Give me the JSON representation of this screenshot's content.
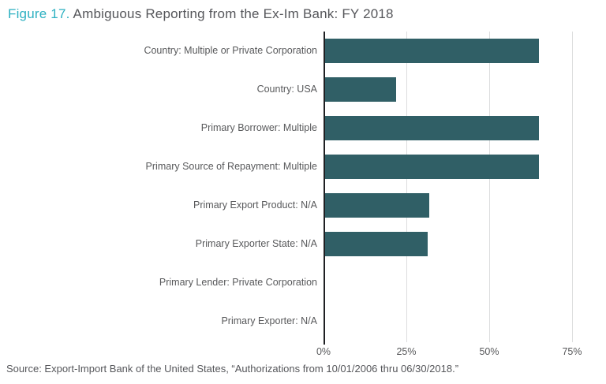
{
  "title": {
    "figure_label": "Figure 17.",
    "title_text": "Ambiguous Reporting from the Ex-Im Bank: FY 2018"
  },
  "source_note": "Source: Export-Import Bank of the United States, “Authorizations from 10/01/2006 thru 06/30/2018.”",
  "colors": {
    "bar": "#305F66",
    "figure_label": "#2CB0C1",
    "title_text": "#55565A",
    "label_text": "#58595B",
    "gridline": "#DCDDDE",
    "axis_line": "#1F2023"
  },
  "chart_data": {
    "type": "bar",
    "orientation": "horizontal",
    "title": "Ambiguous Reporting from the Ex-Im Bank: FY 2018",
    "categories": [
      "Country: Multiple or Private Corporation",
      "Country: USA",
      "Primary Borrower: Multiple",
      "Primary Source of Repayment: Multiple",
      "Primary Export Product: N/A",
      "Primary Exporter State: N/A",
      "Primary Lender: Private Corporation",
      "Primary Exporter: N/A"
    ],
    "values": [
      65,
      22,
      65,
      65,
      32,
      31.5,
      0,
      0
    ],
    "unit": "%",
    "x_tick_labels": [
      "0%",
      "25%",
      "50%",
      "75%"
    ],
    "x_tick_values": [
      0,
      25,
      50,
      75
    ],
    "xlim": [
      0,
      80
    ],
    "grid": true,
    "legend": false,
    "bar_color": "#305F66"
  }
}
